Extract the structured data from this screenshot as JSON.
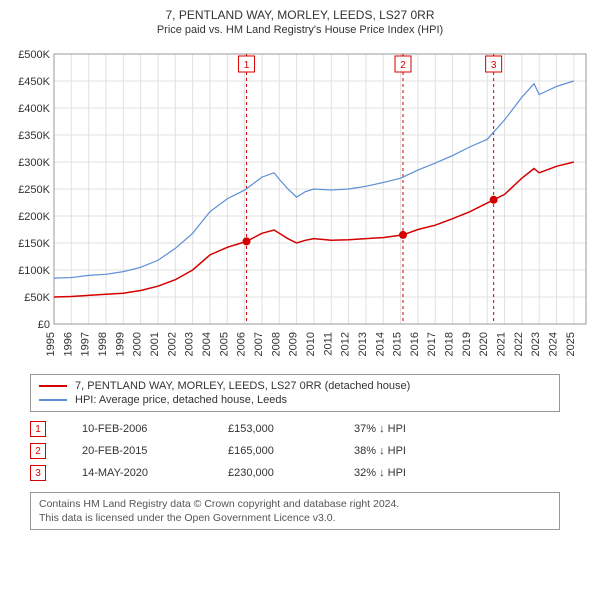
{
  "title_line1": "7, PENTLAND WAY, MORLEY, LEEDS, LS27 0RR",
  "title_line2": "Price paid vs. HM Land Registry's House Price Index (HPI)",
  "chart": {
    "type": "line",
    "background_color": "#ffffff",
    "grid_color": "#e0e0e0",
    "xlim": [
      1995,
      2025.7
    ],
    "ylim": [
      0,
      500000
    ],
    "ytick_step": 50000,
    "yticks": [
      "£0",
      "£50K",
      "£100K",
      "£150K",
      "£200K",
      "£250K",
      "£300K",
      "£350K",
      "£400K",
      "£450K",
      "£500K"
    ],
    "xticks": [
      1995,
      1996,
      1997,
      1998,
      1999,
      2000,
      2001,
      2002,
      2003,
      2004,
      2005,
      2006,
      2007,
      2008,
      2009,
      2010,
      2011,
      2012,
      2013,
      2014,
      2015,
      2016,
      2017,
      2018,
      2019,
      2020,
      2021,
      2022,
      2023,
      2024,
      2025
    ],
    "series": [
      {
        "name": "7, PENTLAND WAY, MORLEY, LEEDS, LS27 0RR (detached house)",
        "color": "#d40000",
        "width": 1.5,
        "points": [
          [
            1995,
            50000
          ],
          [
            1996,
            51000
          ],
          [
            1997,
            53000
          ],
          [
            1998,
            55000
          ],
          [
            1999,
            57000
          ],
          [
            2000,
            62000
          ],
          [
            2001,
            70000
          ],
          [
            2002,
            82000
          ],
          [
            2003,
            100000
          ],
          [
            2004,
            128000
          ],
          [
            2005,
            142000
          ],
          [
            2006.11,
            153000
          ],
          [
            2007,
            168000
          ],
          [
            2007.7,
            174000
          ],
          [
            2008,
            168000
          ],
          [
            2008.5,
            158000
          ],
          [
            2009,
            150000
          ],
          [
            2009.5,
            155000
          ],
          [
            2010,
            158000
          ],
          [
            2011,
            155000
          ],
          [
            2012,
            156000
          ],
          [
            2013,
            158000
          ],
          [
            2014,
            160000
          ],
          [
            2015.14,
            165000
          ],
          [
            2016,
            175000
          ],
          [
            2017,
            183000
          ],
          [
            2018,
            195000
          ],
          [
            2019,
            208000
          ],
          [
            2020.37,
            230000
          ],
          [
            2021,
            240000
          ],
          [
            2022,
            270000
          ],
          [
            2022.7,
            288000
          ],
          [
            2023,
            280000
          ],
          [
            2024,
            292000
          ],
          [
            2025,
            300000
          ]
        ]
      },
      {
        "name": "HPI: Average price, detached house, Leeds",
        "color": "#5b8fd6",
        "width": 1.2,
        "points": [
          [
            1995,
            85000
          ],
          [
            1996,
            86000
          ],
          [
            1997,
            90000
          ],
          [
            1998,
            92000
          ],
          [
            1999,
            97000
          ],
          [
            2000,
            105000
          ],
          [
            2001,
            118000
          ],
          [
            2002,
            140000
          ],
          [
            2003,
            168000
          ],
          [
            2004,
            208000
          ],
          [
            2005,
            232000
          ],
          [
            2006,
            248000
          ],
          [
            2007,
            272000
          ],
          [
            2007.7,
            280000
          ],
          [
            2008,
            268000
          ],
          [
            2008.5,
            250000
          ],
          [
            2009,
            235000
          ],
          [
            2009.5,
            245000
          ],
          [
            2010,
            250000
          ],
          [
            2011,
            248000
          ],
          [
            2012,
            250000
          ],
          [
            2013,
            255000
          ],
          [
            2014,
            262000
          ],
          [
            2015,
            270000
          ],
          [
            2016,
            285000
          ],
          [
            2017,
            298000
          ],
          [
            2018,
            312000
          ],
          [
            2019,
            328000
          ],
          [
            2020,
            342000
          ],
          [
            2021,
            378000
          ],
          [
            2022,
            420000
          ],
          [
            2022.7,
            445000
          ],
          [
            2023,
            425000
          ],
          [
            2024,
            440000
          ],
          [
            2025,
            450000
          ]
        ]
      }
    ],
    "markers": [
      {
        "id": "1",
        "x": 2006.11,
        "y": 153000,
        "color": "#d40000"
      },
      {
        "id": "2",
        "x": 2015.14,
        "y": 165000,
        "color": "#d40000"
      },
      {
        "id": "3",
        "x": 2020.37,
        "y": 230000,
        "color": "#d40000"
      }
    ],
    "marker_line_color": "#d40000",
    "marker_line_dash": "3,3",
    "label_fontsize": 11
  },
  "legend": [
    {
      "color": "#d40000",
      "label": "7, PENTLAND WAY, MORLEY, LEEDS, LS27 0RR (detached house)"
    },
    {
      "color": "#5b8fd6",
      "label": "HPI: Average price, detached house, Leeds"
    }
  ],
  "transactions": [
    {
      "id": "1",
      "date": "10-FEB-2006",
      "price": "£153,000",
      "delta": "37% ↓ HPI"
    },
    {
      "id": "2",
      "date": "20-FEB-2015",
      "price": "£165,000",
      "delta": "38% ↓ HPI"
    },
    {
      "id": "3",
      "date": "14-MAY-2020",
      "price": "£230,000",
      "delta": "32% ↓ HPI"
    }
  ],
  "footer_line1": "Contains HM Land Registry data © Crown copyright and database right 2024.",
  "footer_line2": "This data is licensed under the Open Government Licence v3.0."
}
